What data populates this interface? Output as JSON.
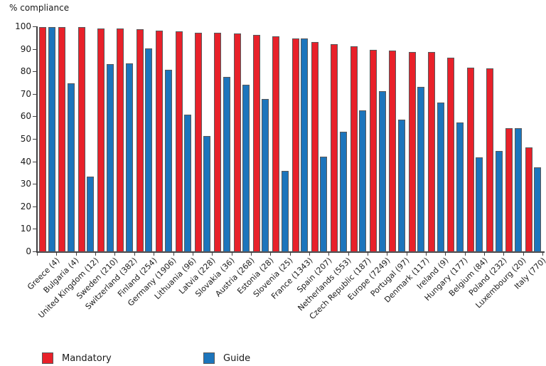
{
  "chart_data": {
    "type": "bar",
    "title": "% compliance",
    "ylabel": "% compliance",
    "xlabel": "",
    "ylim": [
      0,
      100
    ],
    "y_tick_step": 10,
    "grid": false,
    "legend_position": "bottom",
    "categories": [
      "Greece (4)",
      "Bulgaria (4)",
      "United Kingdom (12)",
      "Sweden (210)",
      "Switzerland (382)",
      "Finland (254)",
      "Germany (1906)",
      "Lithuania (96)",
      "Latvia (228)",
      "Slovakia (36)",
      "Austria (268)",
      "Estonia (28)",
      "Slovenia (25)",
      "France (1343)",
      "Spain (207)",
      "Netherlands (553)",
      "Czech Republic (187)",
      "Europe (7249)",
      "Portugal (97)",
      "Denmark (117)",
      "Ireland (9)",
      "Hungary (177)",
      "Belgium (84)",
      "Poland (232)",
      "Luxembourg (20)",
      "Italy (770)"
    ],
    "series": [
      {
        "name": "Mandatory",
        "color": "#e8212a",
        "values": [
          100,
          100,
          100,
          99.5,
          99.5,
          99,
          98.5,
          98,
          97.5,
          97.5,
          97,
          96.5,
          96,
          95,
          93.5,
          92.5,
          91.5,
          90,
          89.5,
          89,
          89,
          86.5,
          82,
          81.5,
          55,
          46.5
        ]
      },
      {
        "name": "Guide",
        "color": "#1c75bc",
        "values": [
          100,
          75,
          33.5,
          83.5,
          84,
          90.5,
          81,
          61,
          51.5,
          78,
          74.5,
          68,
          36,
          95,
          42.5,
          53.5,
          63,
          71.5,
          59,
          73.5,
          66.5,
          57.5,
          42,
          45,
          55,
          37.5
        ]
      }
    ]
  },
  "colors": {
    "bar_border": "#58595b",
    "axis": "#414042",
    "text": "#1a1a1a"
  }
}
